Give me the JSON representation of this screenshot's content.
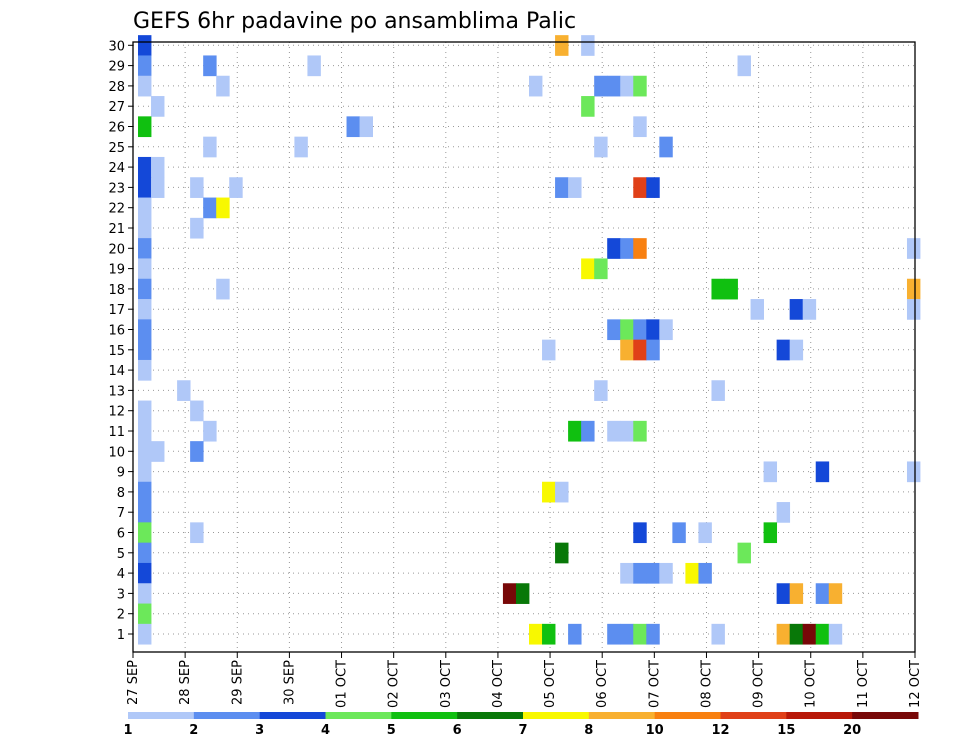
{
  "chart_data": {
    "type": "heatmap",
    "title": "GEFS 6hr padavine po ansamblima Palic",
    "x_start": "2020-09-27",
    "x_end": "2020-10-12",
    "x_step_hours": 6,
    "x_tick_labels": [
      "27 SEP",
      "28 SEP",
      "29 SEP",
      "30 SEP",
      "01 OCT",
      "02 OCT",
      "03 OCT",
      "04 OCT",
      "05 OCT",
      "06 OCT",
      "07 OCT",
      "08 OCT",
      "09 OCT",
      "10 OCT",
      "11 OCT",
      "12 OCT"
    ],
    "y_range": [
      1,
      30
    ],
    "y_ticks": [
      1,
      2,
      3,
      4,
      5,
      6,
      7,
      8,
      9,
      10,
      11,
      12,
      13,
      14,
      15,
      16,
      17,
      18,
      19,
      20,
      21,
      22,
      23,
      24,
      25,
      26,
      27,
      28,
      29,
      30
    ],
    "grid": true,
    "colorbar": {
      "tick_labels": [
        "1",
        "2",
        "3",
        "4",
        "5",
        "6",
        "7",
        "8",
        "10",
        "12",
        "15",
        "20"
      ],
      "colors": [
        "#b0c8f8",
        "#5c8ef0",
        "#1448d8",
        "#6ce85a",
        "#10c010",
        "#087808",
        "#f8f800",
        "#f8b030",
        "#f88010",
        "#e04018",
        "#b81808",
        "#780808"
      ]
    },
    "cells_note": "each cell: [ensemble member, 6h step index from 27 SEP 00Z, precipitation class 1-12]",
    "cells": [
      [
        30,
        0,
        3
      ],
      [
        30,
        32,
        8
      ],
      [
        30,
        34,
        1
      ],
      [
        29,
        0,
        2
      ],
      [
        29,
        5,
        2
      ],
      [
        29,
        13,
        1
      ],
      [
        29,
        46,
        1
      ],
      [
        28,
        0,
        1
      ],
      [
        28,
        6,
        1
      ],
      [
        28,
        30,
        1
      ],
      [
        28,
        35,
        2
      ],
      [
        28,
        36,
        2
      ],
      [
        28,
        37,
        1
      ],
      [
        28,
        38,
        4
      ],
      [
        27,
        1,
        1
      ],
      [
        27,
        34,
        4
      ],
      [
        26,
        0,
        5
      ],
      [
        26,
        16,
        2
      ],
      [
        26,
        17,
        1
      ],
      [
        26,
        38,
        1
      ],
      [
        25,
        5,
        1
      ],
      [
        25,
        12,
        1
      ],
      [
        25,
        35,
        1
      ],
      [
        25,
        40,
        2
      ],
      [
        24,
        0,
        3
      ],
      [
        24,
        1,
        1
      ],
      [
        23,
        0,
        3
      ],
      [
        23,
        1,
        1
      ],
      [
        23,
        4,
        1
      ],
      [
        23,
        7,
        1
      ],
      [
        23,
        32,
        2
      ],
      [
        23,
        33,
        1
      ],
      [
        23,
        38,
        10
      ],
      [
        23,
        39,
        3
      ],
      [
        22,
        0,
        1
      ],
      [
        22,
        5,
        2
      ],
      [
        22,
        6,
        7
      ],
      [
        21,
        0,
        1
      ],
      [
        21,
        4,
        1
      ],
      [
        20,
        0,
        2
      ],
      [
        20,
        36,
        3
      ],
      [
        20,
        37,
        2
      ],
      [
        20,
        38,
        9
      ],
      [
        20,
        59,
        1
      ],
      [
        19,
        0,
        1
      ],
      [
        19,
        34,
        7
      ],
      [
        19,
        35,
        4
      ],
      [
        18,
        0,
        2
      ],
      [
        18,
        6,
        1
      ],
      [
        18,
        44,
        5
      ],
      [
        18,
        45,
        5
      ],
      [
        18,
        59,
        8
      ],
      [
        17,
        0,
        1
      ],
      [
        17,
        47,
        1
      ],
      [
        17,
        50,
        3
      ],
      [
        17,
        51,
        1
      ],
      [
        17,
        59,
        1
      ],
      [
        16,
        0,
        2
      ],
      [
        16,
        36,
        2
      ],
      [
        16,
        37,
        4
      ],
      [
        16,
        38,
        2
      ],
      [
        16,
        39,
        3
      ],
      [
        16,
        40,
        1
      ],
      [
        15,
        0,
        2
      ],
      [
        15,
        31,
        1
      ],
      [
        15,
        37,
        8
      ],
      [
        15,
        38,
        10
      ],
      [
        15,
        39,
        2
      ],
      [
        15,
        49,
        3
      ],
      [
        15,
        50,
        1
      ],
      [
        14,
        0,
        1
      ],
      [
        13,
        3,
        1
      ],
      [
        13,
        35,
        1
      ],
      [
        13,
        44,
        1
      ],
      [
        12,
        0,
        1
      ],
      [
        12,
        4,
        1
      ],
      [
        11,
        0,
        1
      ],
      [
        11,
        5,
        1
      ],
      [
        11,
        33,
        5
      ],
      [
        11,
        34,
        2
      ],
      [
        11,
        36,
        1
      ],
      [
        11,
        37,
        1
      ],
      [
        11,
        38,
        4
      ],
      [
        10,
        0,
        1
      ],
      [
        10,
        1,
        1
      ],
      [
        10,
        4,
        2
      ],
      [
        9,
        0,
        1
      ],
      [
        9,
        48,
        1
      ],
      [
        9,
        52,
        3
      ],
      [
        9,
        59,
        1
      ],
      [
        8,
        0,
        2
      ],
      [
        8,
        31,
        7
      ],
      [
        8,
        32,
        1
      ],
      [
        7,
        0,
        2
      ],
      [
        7,
        49,
        1
      ],
      [
        6,
        0,
        4
      ],
      [
        6,
        4,
        1
      ],
      [
        6,
        38,
        3
      ],
      [
        6,
        41,
        2
      ],
      [
        6,
        43,
        1
      ],
      [
        6,
        48,
        5
      ],
      [
        5,
        0,
        2
      ],
      [
        5,
        32,
        6
      ],
      [
        5,
        46,
        4
      ],
      [
        4,
        0,
        3
      ],
      [
        4,
        37,
        1
      ],
      [
        4,
        38,
        2
      ],
      [
        4,
        39,
        2
      ],
      [
        4,
        40,
        1
      ],
      [
        4,
        42,
        7
      ],
      [
        4,
        43,
        2
      ],
      [
        3,
        0,
        1
      ],
      [
        3,
        28,
        12
      ],
      [
        3,
        29,
        6
      ],
      [
        3,
        49,
        3
      ],
      [
        3,
        50,
        8
      ],
      [
        3,
        52,
        2
      ],
      [
        3,
        53,
        8
      ],
      [
        2,
        0,
        4
      ],
      [
        1,
        0,
        1
      ],
      [
        1,
        30,
        7
      ],
      [
        1,
        31,
        5
      ],
      [
        1,
        33,
        2
      ],
      [
        1,
        36,
        2
      ],
      [
        1,
        37,
        2
      ],
      [
        1,
        38,
        4
      ],
      [
        1,
        39,
        2
      ],
      [
        1,
        44,
        1
      ],
      [
        1,
        49,
        8
      ],
      [
        1,
        50,
        6
      ],
      [
        1,
        51,
        12
      ],
      [
        1,
        52,
        5
      ],
      [
        1,
        53,
        1
      ]
    ]
  }
}
